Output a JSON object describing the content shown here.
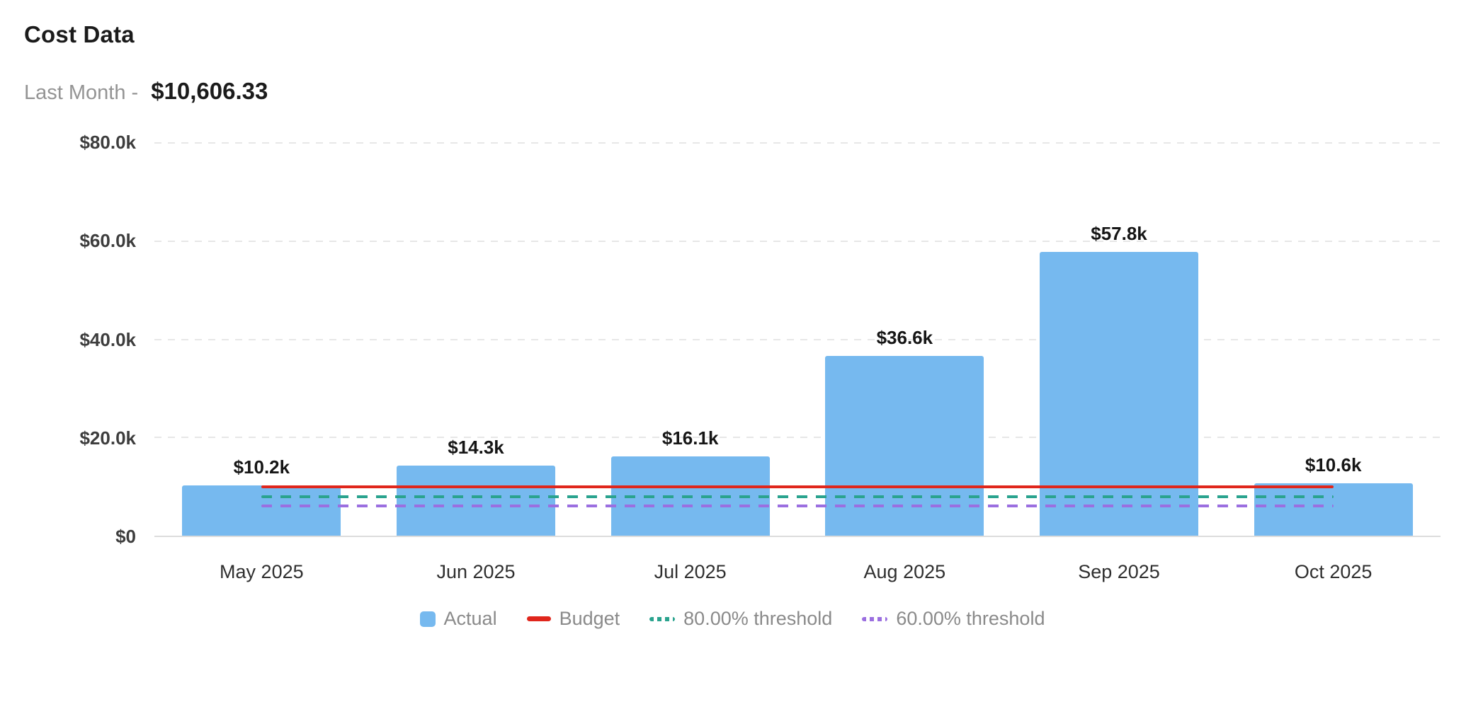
{
  "header": {
    "title": "Cost Data",
    "subtitle_label": "Last Month -",
    "subtitle_value": "$10,606.33"
  },
  "chart_data": {
    "type": "bar",
    "title": "Cost Data",
    "categories": [
      "May 2025",
      "Jun 2025",
      "Jul 2025",
      "Aug 2025",
      "Sep 2025",
      "Oct 2025"
    ],
    "series": [
      {
        "name": "Actual",
        "type": "bar",
        "color": "#76b9ef",
        "values": [
          10200,
          14300,
          16100,
          36600,
          57800,
          10600
        ],
        "labels": [
          "$10.2k",
          "$14.3k",
          "$16.1k",
          "$36.6k",
          "$57.8k",
          "$10.6k"
        ]
      },
      {
        "name": "Budget",
        "type": "line",
        "dash": false,
        "color": "#e0261c",
        "value": 10000
      },
      {
        "name": "80.00% threshold",
        "type": "line",
        "dash": true,
        "color": "#2aa38e",
        "value": 8000
      },
      {
        "name": "60.00% threshold",
        "type": "line",
        "dash": true,
        "color": "#9b6fe0",
        "value": 6000
      }
    ],
    "xlabel": "",
    "ylabel": "",
    "ylim": [
      0,
      80000
    ],
    "yticks": [
      {
        "value": 0,
        "label": "$0"
      },
      {
        "value": 20000,
        "label": "$20.0k"
      },
      {
        "value": 40000,
        "label": "$40.0k"
      },
      {
        "value": 60000,
        "label": "$60.0k"
      },
      {
        "value": 80000,
        "label": "$80.0k"
      }
    ],
    "grid": true,
    "grid_color": "#e7e7e7",
    "legend_position": "bottom",
    "legend": [
      "Actual",
      "Budget",
      "80.00% threshold",
      "60.00% threshold"
    ]
  }
}
